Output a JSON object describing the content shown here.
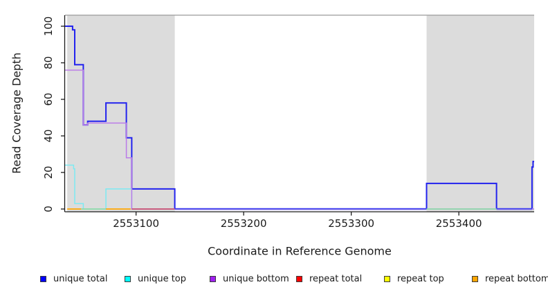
{
  "figure": {
    "x_title": "Coordinate in Reference Genome",
    "y_title": "Read Coverage Depth",
    "background": "#ffffff",
    "shaded_region_color": "#dcdcdc",
    "axis_color": "#1a1a1a",
    "plot_top_border_color": "#999999"
  },
  "chart_data": {
    "type": "line",
    "subtype": "step-coverage-plot",
    "title": "",
    "xlabel": "Coordinate in Reference Genome",
    "ylabel": "Read Coverage Depth",
    "xlim": [
      2553034,
      2553470
    ],
    "ylim": [
      0,
      107
    ],
    "grid": false,
    "x_ticks": [
      2553100,
      2553200,
      2553300,
      2553400
    ],
    "x_tick_labels": [
      "2553100",
      "2553200",
      "2553300",
      "2553400"
    ],
    "y_ticks": [
      0,
      20,
      40,
      60,
      80,
      100
    ],
    "y_tick_labels": [
      "0",
      "20",
      "40",
      "60",
      "80",
      "100"
    ],
    "shaded_regions": [
      {
        "name": "left-gray-region",
        "x0": 2553036,
        "x1": 2553136
      },
      {
        "name": "right-gray-region",
        "x0": 2553370,
        "x1": 2553470
      }
    ],
    "series": [
      {
        "name": "unique total",
        "color": "#2222ee",
        "width": 2,
        "steps": [
          [
            2553034,
            2553041,
            100
          ],
          [
            2553041,
            2553043,
            98
          ],
          [
            2553043,
            2553051,
            79
          ],
          [
            2553051,
            2553055,
            46
          ],
          [
            2553055,
            2553072,
            48
          ],
          [
            2553072,
            2553091,
            58
          ],
          [
            2553091,
            2553096,
            39
          ],
          [
            2553096,
            2553136,
            11
          ],
          [
            2553136,
            2553370,
            0
          ],
          [
            2553370,
            2553435,
            14
          ],
          [
            2553435,
            2553468,
            0
          ],
          [
            2553468,
            2553469,
            23
          ],
          [
            2553469,
            2553470,
            26
          ]
        ]
      },
      {
        "name": "unique top",
        "color": "#7ceaf2",
        "width": 1.5,
        "steps": [
          [
            2553034,
            2553042,
            24
          ],
          [
            2553042,
            2553043,
            22
          ],
          [
            2553043,
            2553051,
            3
          ],
          [
            2553051,
            2553072,
            0
          ],
          [
            2553072,
            2553096,
            11
          ],
          [
            2553096,
            2553470,
            0
          ]
        ]
      },
      {
        "name": "unique bottom",
        "color": "#bb7be8",
        "width": 1.5,
        "steps": [
          [
            2553034,
            2553051,
            76
          ],
          [
            2553051,
            2553055,
            46
          ],
          [
            2553055,
            2553091,
            47
          ],
          [
            2553091,
            2553096,
            28
          ],
          [
            2553096,
            2553470,
            0
          ]
        ]
      }
    ],
    "zero_line_segments": [
      {
        "x0": 2553036,
        "x1": 2553049,
        "color": "#ffa500"
      },
      {
        "x0": 2553049,
        "x1": 2553072,
        "color": "#90d9a8"
      },
      {
        "x0": 2553072,
        "x1": 2553095,
        "color": "#ffa500"
      },
      {
        "x0": 2553096,
        "x1": 2553136,
        "color": "#cc5070"
      },
      {
        "x0": 2553136,
        "x1": 2553370,
        "color": "blue-over-purple"
      },
      {
        "x0": 2553370,
        "x1": 2553435,
        "color": "#90d9a8"
      },
      {
        "x0": 2553435,
        "x1": 2553468,
        "color": "blue-over-purple"
      }
    ],
    "legend_position": "bottom"
  },
  "legend": {
    "items": [
      {
        "label": "unique total",
        "color": "#0000ff"
      },
      {
        "label": "unique top",
        "color": "#00ffff"
      },
      {
        "label": "unique bottom",
        "color": "#a020f0"
      },
      {
        "label": "repeat total",
        "color": "#ff0000"
      },
      {
        "label": "repeat top",
        "color": "#ffff00"
      },
      {
        "label": "repeat bottom",
        "color": "#ffa500"
      }
    ]
  }
}
